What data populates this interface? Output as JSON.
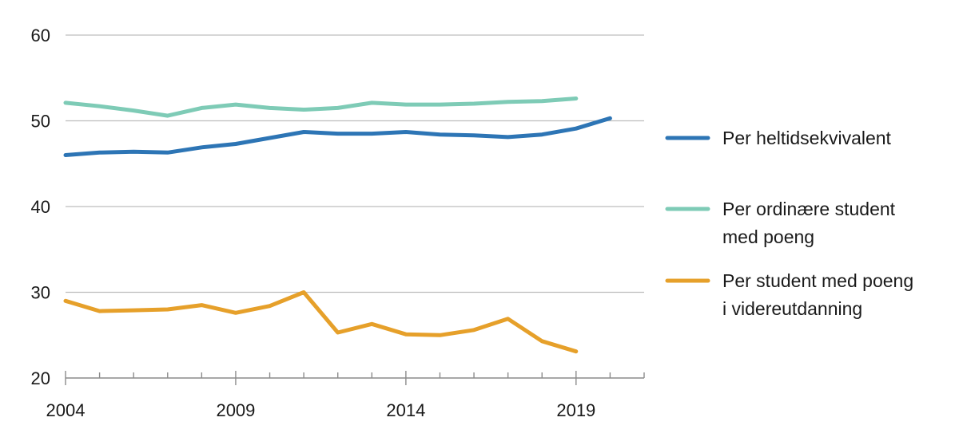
{
  "chart_data": {
    "type": "line",
    "title": "",
    "xlabel": "",
    "ylabel": "",
    "xlim": [
      2004,
      2021
    ],
    "ylim": [
      20,
      60
    ],
    "x_ticks": [
      "2004",
      "2009",
      "2014",
      "2019"
    ],
    "y_ticks": [
      "20",
      "30",
      "40",
      "50",
      "60"
    ],
    "grid": "horizontal",
    "legend_position": "right",
    "x": [
      2004,
      2005,
      2006,
      2007,
      2008,
      2009,
      2010,
      2011,
      2012,
      2013,
      2014,
      2015,
      2016,
      2017,
      2018,
      2019,
      2020
    ],
    "series": [
      {
        "name": "Per heltidsekvivalent",
        "color": "#2d75b5",
        "values": [
          46.0,
          46.3,
          46.4,
          46.3,
          46.9,
          47.3,
          48.0,
          48.7,
          48.5,
          48.5,
          48.7,
          48.4,
          48.3,
          48.1,
          48.4,
          49.1,
          50.3
        ]
      },
      {
        "name": "Per ordinære student med poeng",
        "color": "#7ecbb6",
        "values": [
          52.1,
          51.7,
          51.2,
          50.6,
          51.5,
          51.9,
          51.5,
          51.3,
          51.5,
          52.1,
          51.9,
          51.9,
          52.0,
          52.2,
          52.3,
          52.6,
          null
        ]
      },
      {
        "name": "Per student med poeng i videreutdanning",
        "color": "#e6a02a",
        "values": [
          29.0,
          27.8,
          27.9,
          28.0,
          28.5,
          27.6,
          28.4,
          30.0,
          25.3,
          26.3,
          25.1,
          25.0,
          25.6,
          26.9,
          24.3,
          23.1,
          null
        ]
      }
    ],
    "legend_lines": [
      [
        "Per heltidsekvivalent"
      ],
      [
        "Per ordinære student",
        "med poeng"
      ],
      [
        "Per student med poeng",
        "i videreutdanning"
      ]
    ]
  }
}
